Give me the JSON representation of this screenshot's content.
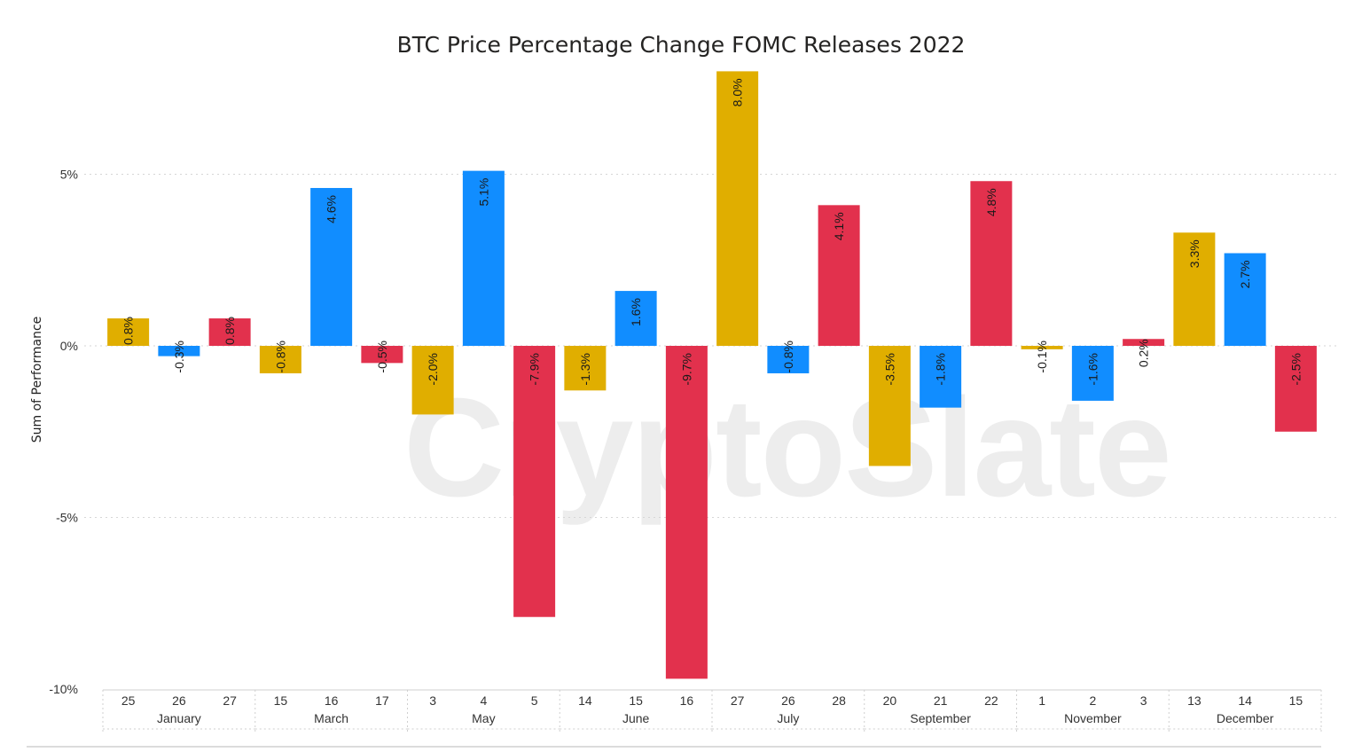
{
  "chart_data": {
    "type": "bar",
    "title": "BTC Price Percentage Change FOMC Releases 2022",
    "ylabel": "Sum of Performance",
    "xlabel": "",
    "ylim": [
      -10,
      8
    ],
    "yticks": [
      {
        "value": 5,
        "label": "5%"
      },
      {
        "value": 0,
        "label": "0%"
      },
      {
        "value": -5,
        "label": "-5%"
      },
      {
        "value": -10,
        "label": "-10%"
      }
    ],
    "grid": true,
    "legend": "none",
    "colors": {
      "first_day": "#E0AE00",
      "second_day": "#118DFF",
      "third_day": "#E2314D"
    },
    "groups": [
      {
        "month": "January",
        "bars": [
          {
            "day": "25",
            "value": 0.8,
            "label": "0.8%",
            "color": "#E0AE00"
          },
          {
            "day": "26",
            "value": -0.3,
            "label": "-0.3%",
            "color": "#118DFF"
          },
          {
            "day": "27",
            "value": 0.8,
            "label": "0.8%",
            "color": "#E2314D"
          }
        ]
      },
      {
        "month": "March",
        "bars": [
          {
            "day": "15",
            "value": -0.8,
            "label": "-0.8%",
            "color": "#E0AE00"
          },
          {
            "day": "16",
            "value": 4.6,
            "label": "4.6%",
            "color": "#118DFF"
          },
          {
            "day": "17",
            "value": -0.5,
            "label": "-0.5%",
            "color": "#E2314D"
          }
        ]
      },
      {
        "month": "May",
        "bars": [
          {
            "day": "3",
            "value": -2.0,
            "label": "-2.0%",
            "color": "#E0AE00"
          },
          {
            "day": "4",
            "value": 5.1,
            "label": "5.1%",
            "color": "#118DFF"
          },
          {
            "day": "5",
            "value": -7.9,
            "label": "-7.9%",
            "color": "#E2314D"
          }
        ]
      },
      {
        "month": "June",
        "bars": [
          {
            "day": "14",
            "value": -1.3,
            "label": "-1.3%",
            "color": "#E0AE00"
          },
          {
            "day": "15",
            "value": 1.6,
            "label": "1.6%",
            "color": "#118DFF"
          },
          {
            "day": "16",
            "value": -9.7,
            "label": "-9.7%",
            "color": "#E2314D"
          }
        ]
      },
      {
        "month": "July",
        "bars": [
          {
            "day": "27",
            "value": 8.0,
            "label": "8.0%",
            "color": "#E0AE00"
          },
          {
            "day": "26",
            "value": -0.8,
            "label": "-0.8%",
            "color": "#118DFF"
          },
          {
            "day": "28",
            "value": 4.1,
            "label": "4.1%",
            "color": "#E2314D"
          }
        ]
      },
      {
        "month": "September",
        "bars": [
          {
            "day": "20",
            "value": -3.5,
            "label": "-3.5%",
            "color": "#E0AE00"
          },
          {
            "day": "21",
            "value": -1.8,
            "label": "-1.8%",
            "color": "#118DFF"
          },
          {
            "day": "22",
            "value": 4.8,
            "label": "4.8%",
            "color": "#E2314D"
          }
        ]
      },
      {
        "month": "November",
        "bars": [
          {
            "day": "1",
            "value": -0.1,
            "label": "-0.1%",
            "color": "#E0AE00"
          },
          {
            "day": "2",
            "value": -1.6,
            "label": "-1.6%",
            "color": "#118DFF"
          },
          {
            "day": "3",
            "value": 0.2,
            "label": "0.2%",
            "color": "#E2314D"
          }
        ]
      },
      {
        "month": "December",
        "bars": [
          {
            "day": "13",
            "value": 3.3,
            "label": "3.3%",
            "color": "#E0AE00"
          },
          {
            "day": "14",
            "value": 2.7,
            "label": "2.7%",
            "color": "#118DFF"
          },
          {
            "day": "15",
            "value": -2.5,
            "label": "-2.5%",
            "color": "#E2314D"
          }
        ]
      }
    ]
  },
  "watermark": "CryptoSlate"
}
